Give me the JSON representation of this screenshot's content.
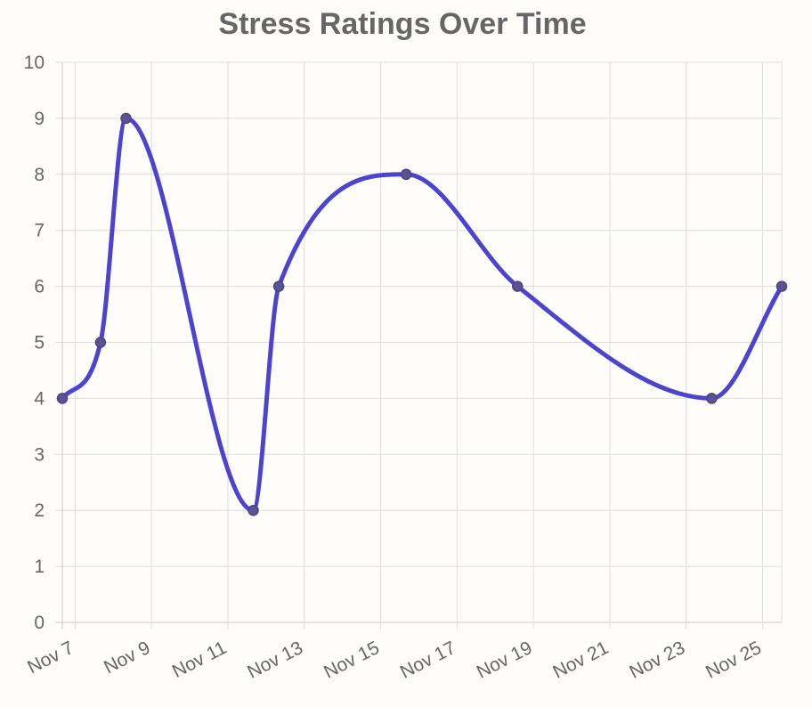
{
  "chart_data": {
    "type": "line",
    "title": "Stress Ratings Over Time",
    "xlabel": "",
    "ylabel": "",
    "ylim": [
      0,
      10
    ],
    "yticks": [
      "0",
      "1",
      "2",
      "3",
      "4",
      "5",
      "6",
      "7",
      "8",
      "9",
      "10"
    ],
    "xlim": [
      "2024-11-06T16:00",
      "2024-11-25T12:00"
    ],
    "xticks": [
      {
        "date": "2024-11-07",
        "label": "Nov 7"
      },
      {
        "date": "2024-11-09",
        "label": "Nov 9"
      },
      {
        "date": "2024-11-11",
        "label": "Nov 11"
      },
      {
        "date": "2024-11-13",
        "label": "Nov 13"
      },
      {
        "date": "2024-11-15",
        "label": "Nov 15"
      },
      {
        "date": "2024-11-17",
        "label": "Nov 17"
      },
      {
        "date": "2024-11-19",
        "label": "Nov 19"
      },
      {
        "date": "2024-11-21",
        "label": "Nov 21"
      },
      {
        "date": "2024-11-23",
        "label": "Nov 23"
      },
      {
        "date": "2024-11-25",
        "label": "Nov 25"
      }
    ],
    "grid": true,
    "legend": "none",
    "colors": {
      "line": "#4b44cf",
      "point": "#5a5393",
      "grid": "#dddddd",
      "axis": "#cccccc",
      "text": "#666666"
    },
    "series": [
      {
        "x": [
          "2024-11-06T16:00",
          "2024-11-07T16:00",
          "2024-11-08T08:00",
          "2024-11-11T16:00",
          "2024-11-12T08:00",
          "2024-11-15T16:00",
          "2024-11-18T14:00",
          "2024-11-23T16:00",
          "2024-11-25T12:00"
        ],
        "values": [
          4,
          5,
          9,
          2,
          6,
          8,
          6,
          4,
          6
        ]
      }
    ]
  }
}
